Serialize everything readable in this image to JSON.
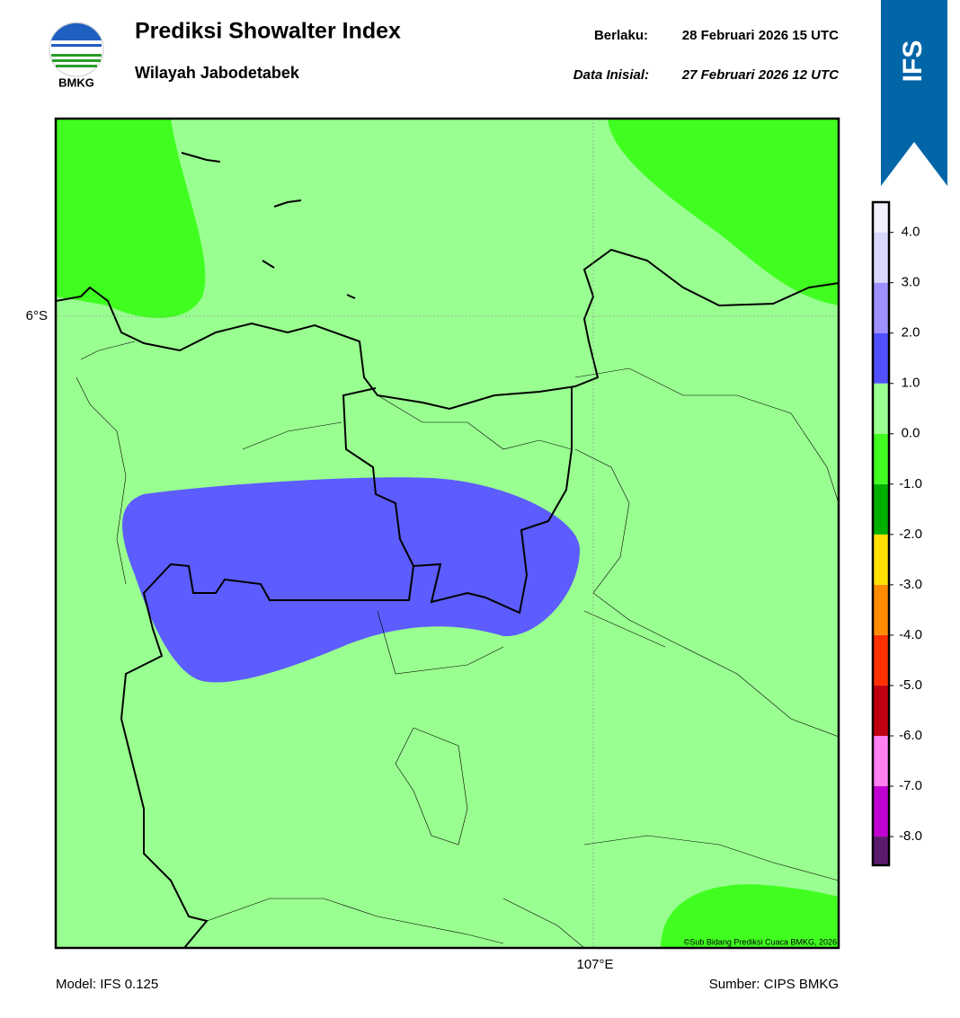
{
  "header": {
    "logo_text": "BMKG",
    "title": "Prediksi Showalter Index",
    "subtitle": "Wilayah Jabodetabek",
    "valid_label": "Berlaku:",
    "valid_time": "28 Februari 2026 15 UTC",
    "init_label": "Data Inisial:",
    "init_time": "27 Februari 2026 12 UTC",
    "banner": "IFS"
  },
  "map": {
    "lat_label": "6°S",
    "lon_label": "107°E",
    "copyright": "©Sub Bidang Prediksi Cuaca BMKG, 2026"
  },
  "colorbar": {
    "lim": [
      -8.57,
      4.6
    ],
    "levels": [
      {
        "value": -8,
        "label": "-8.0"
      },
      {
        "value": -7,
        "label": "-7.0"
      },
      {
        "value": -6,
        "label": "-6.0"
      },
      {
        "value": -5,
        "label": "-5.0"
      },
      {
        "value": -4,
        "label": "-4.0"
      },
      {
        "value": -3,
        "label": "-3.0"
      },
      {
        "value": -2,
        "label": "-2.0"
      },
      {
        "value": -1,
        "label": "-1.0"
      },
      {
        "value": 0,
        "label": "0.0"
      },
      {
        "value": 1,
        "label": "1.0"
      },
      {
        "value": 2,
        "label": "2.0"
      },
      {
        "value": 3,
        "label": "3.0"
      },
      {
        "value": 4,
        "label": "4.0"
      }
    ],
    "colors": [
      "#5c1a6e",
      "#c000d0",
      "#ff80f0",
      "#c00010",
      "#ff3000",
      "#ff8c00",
      "#ffe000",
      "#00b000",
      "#40ff20",
      "#99ff90",
      "#5050ff",
      "#9f90ff",
      "#d8d8ff",
      "#f0f0ff"
    ]
  },
  "footer": {
    "model": "Model: IFS 0.125",
    "source": "Sumber: CIPS BMKG"
  }
}
